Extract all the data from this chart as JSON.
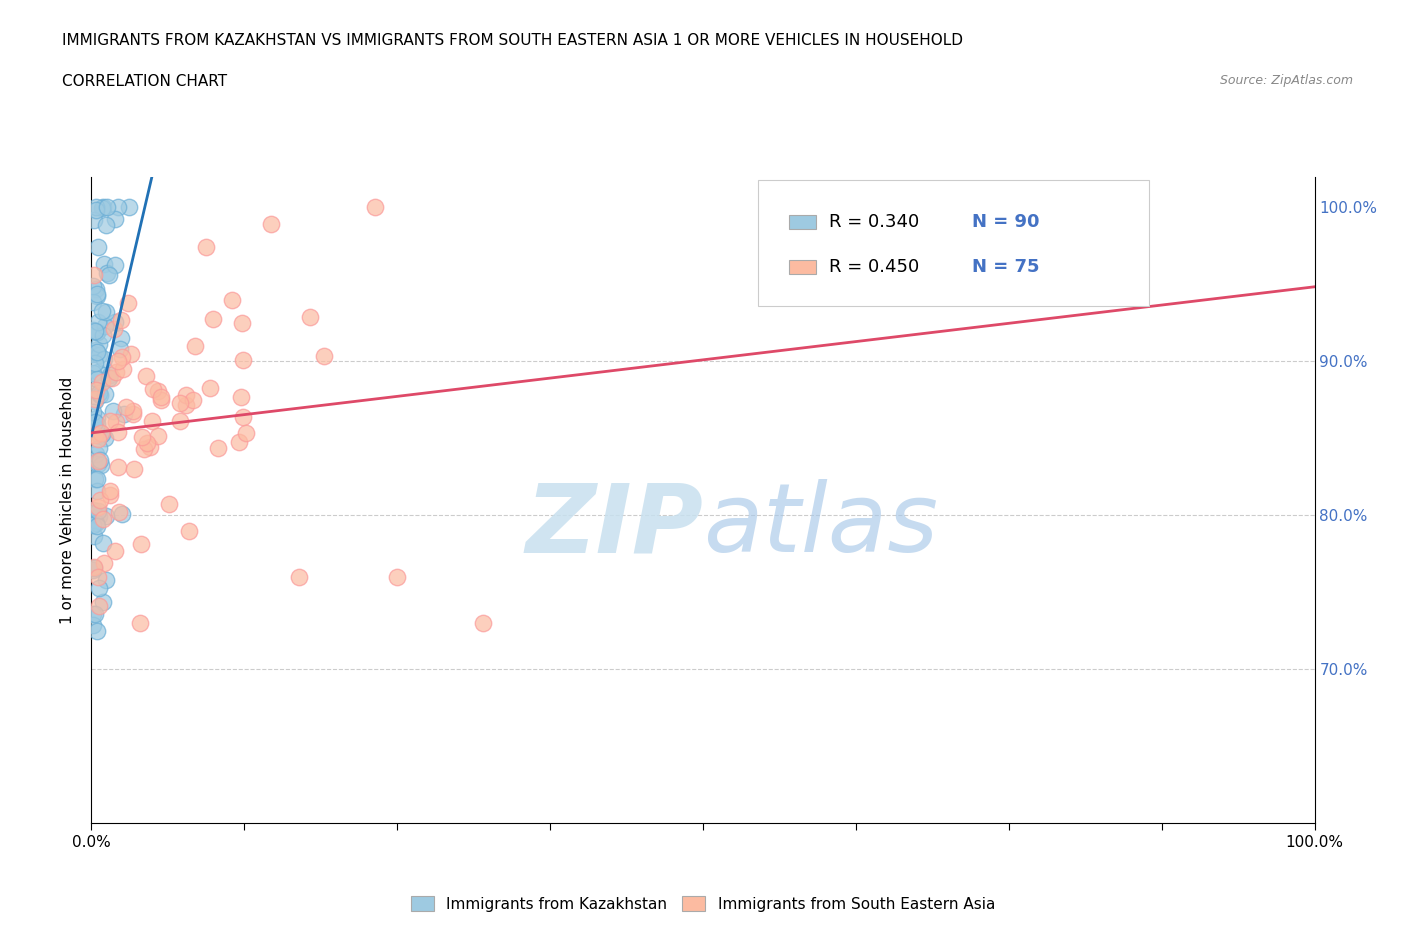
{
  "title": "IMMIGRANTS FROM KAZAKHSTAN VS IMMIGRANTS FROM SOUTH EASTERN ASIA 1 OR MORE VEHICLES IN HOUSEHOLD",
  "subtitle": "CORRELATION CHART",
  "source": "Source: ZipAtlas.com",
  "ylabel": "1 or more Vehicles in Household",
  "legend_label_1": "Immigrants from Kazakhstan",
  "legend_label_2": "Immigrants from South Eastern Asia",
  "R1": 0.34,
  "N1": 90,
  "R2": 0.45,
  "N2": 75,
  "color1": "#9ecae1",
  "color2": "#fcbba1",
  "color1_edge": "#6baed6",
  "color2_edge": "#fb9a99",
  "trendline1_color": "#2171b5",
  "trendline2_color": "#de4968",
  "watermark_color": "#c8e0ef",
  "background_color": "#ffffff",
  "xlim": [
    0.0,
    1.0
  ],
  "ylim": [
    0.6,
    1.02
  ],
  "right_ytick_color": "#4472c4",
  "grid_color": "#cccccc",
  "title_fontsize": 11,
  "subtitle_fontsize": 11,
  "xtick_count": 9,
  "n_ticks_x": [
    0.0,
    0.125,
    0.25,
    0.375,
    0.5,
    0.625,
    0.75,
    0.875,
    1.0
  ]
}
